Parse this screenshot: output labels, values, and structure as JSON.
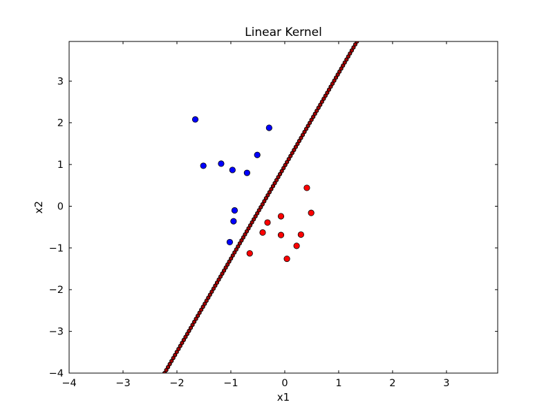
{
  "chart_data": {
    "type": "scatter",
    "title": "Linear Kernel",
    "xlabel": "x1",
    "ylabel": "x2",
    "xlim": [
      -4,
      3.95
    ],
    "ylim": [
      -4,
      3.95
    ],
    "xticks": [
      -4,
      -3,
      -2,
      -1,
      0,
      1,
      2,
      3
    ],
    "yticks": [
      -4,
      -3,
      -2,
      -1,
      0,
      1,
      2,
      3
    ],
    "grid": false,
    "series": [
      {
        "color": "#0000ff",
        "points": [
          [
            -1.66,
            2.08
          ],
          [
            -0.29,
            1.88
          ],
          [
            -0.51,
            1.23
          ],
          [
            -1.51,
            0.97
          ],
          [
            -1.18,
            1.02
          ],
          [
            -0.97,
            0.87
          ],
          [
            -0.7,
            0.8
          ],
          [
            -0.93,
            -0.1
          ],
          [
            -0.95,
            -0.36
          ],
          [
            -1.02,
            -0.86
          ]
        ]
      },
      {
        "color": "#ff0000",
        "points": [
          [
            0.41,
            0.44
          ],
          [
            0.49,
            -0.16
          ],
          [
            -0.07,
            -0.24
          ],
          [
            -0.32,
            -0.39
          ],
          [
            -0.41,
            -0.63
          ],
          [
            -0.07,
            -0.69
          ],
          [
            0.3,
            -0.68
          ],
          [
            0.22,
            -0.95
          ],
          [
            -0.65,
            -1.13
          ],
          [
            0.04,
            -1.26
          ]
        ]
      }
    ],
    "decision_boundary": {
      "line_color": "#000000",
      "marker_fill": "#aa0000",
      "x": [
        -2.23,
        1.34
      ],
      "y": [
        -4.0,
        3.95
      ]
    }
  }
}
